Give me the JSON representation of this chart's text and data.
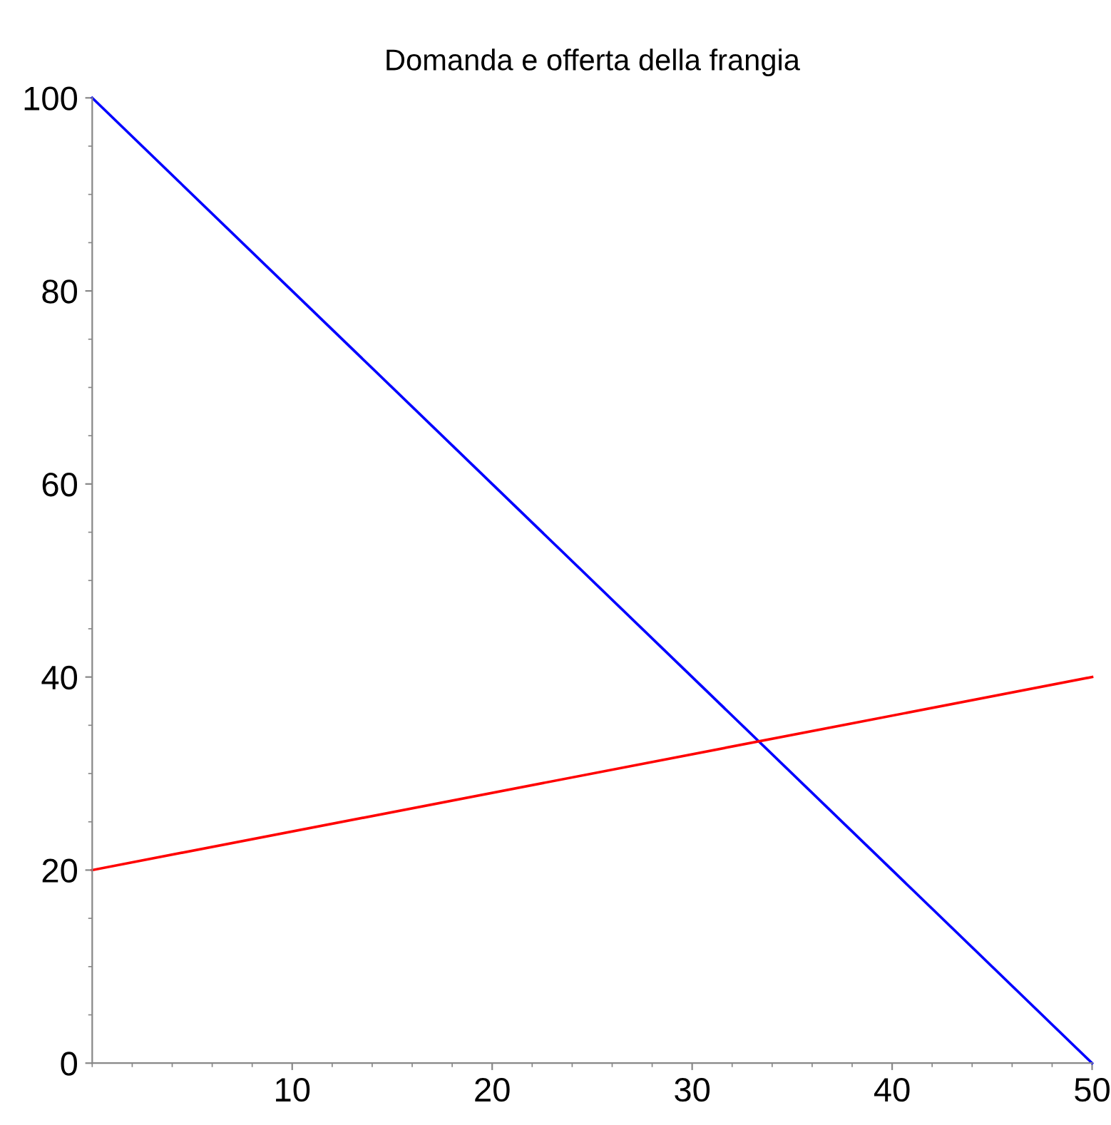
{
  "chart_data": {
    "type": "line",
    "title": "Domanda e offerta della frangia",
    "x": [
      0,
      50
    ],
    "series": [
      {
        "color": "#0000ff",
        "values": [
          100,
          0
        ]
      },
      {
        "color": "#ff0000",
        "values": [
          20,
          40
        ]
      }
    ],
    "xlim": [
      0,
      50
    ],
    "xticks": [
      10,
      20,
      30,
      40,
      50
    ],
    "ylim": [
      0,
      100
    ],
    "yticks": [
      0,
      20,
      40,
      60,
      80,
      100
    ],
    "grid": false,
    "legend": false,
    "marker": "none",
    "line_style": "solid"
  }
}
